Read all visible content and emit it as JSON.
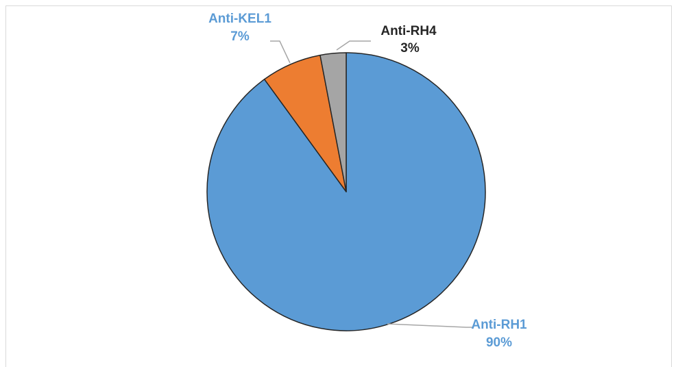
{
  "chart_data": {
    "type": "pie",
    "title": "",
    "start_angle_deg": 0,
    "direction": "clockwise",
    "slices": [
      {
        "label": "Anti-RH1",
        "value": 90,
        "value_label": "90%",
        "color": "#5b9bd5",
        "label_color": "#5b9bd5"
      },
      {
        "label": "Anti-KEL1",
        "value": 7,
        "value_label": "7%",
        "color": "#ed7d31",
        "label_color": "#5b9bd5"
      },
      {
        "label": "Anti-RH4",
        "value": 3,
        "value_label": "3%",
        "color": "#a5a5a5",
        "label_color": "#262626"
      }
    ],
    "legend": "none",
    "grid": false,
    "leader_line_color": "#a6a6a6",
    "slice_border_color": "#262626"
  }
}
